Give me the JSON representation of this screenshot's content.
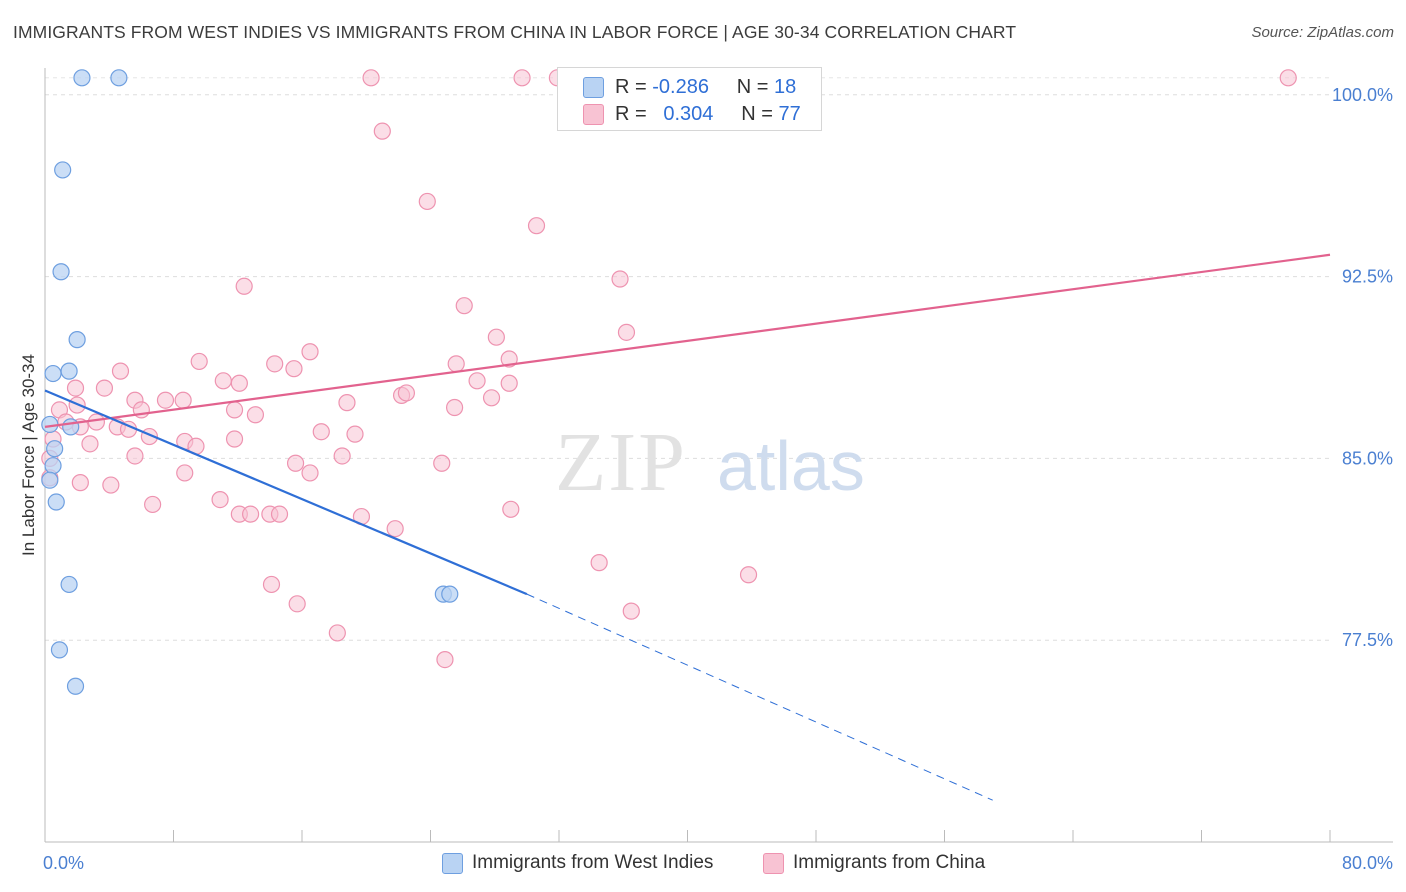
{
  "header": {
    "title": "IMMIGRANTS FROM WEST INDIES VS IMMIGRANTS FROM CHINA IN LABOR FORCE | AGE 30-34 CORRELATION CHART",
    "source": "Source: ZipAtlas.com"
  },
  "watermark": {
    "zip": "ZIP",
    "atlas": "atlas"
  },
  "legend": {
    "rows": [
      {
        "r_label": "R =",
        "r_value": "-0.286",
        "n_label": "N =",
        "n_value": "18"
      },
      {
        "r_label": "R =",
        "r_value": "0.304",
        "n_label": "N =",
        "n_value": "77"
      }
    ]
  },
  "colors": {
    "west_indies_fill": "#b9d3f3",
    "west_indies_stroke": "#6e9fe0",
    "west_indies_line": "#2f6fd6",
    "china_fill": "#f8c3d3",
    "china_stroke": "#ee93b0",
    "china_line": "#e2628e",
    "tick_text": "#4a7fd1",
    "grid": "#dddddd"
  },
  "chart_data": {
    "type": "scatter",
    "title": "IMMIGRANTS FROM WEST INDIES VS IMMIGRANTS FROM CHINA IN LABOR FORCE | AGE 30-34 CORRELATION CHART",
    "xlabel": "",
    "ylabel": "In Labor Force | Age 30-34",
    "xlim": [
      0,
      80
    ],
    "ylim": [
      70.0,
      101.6
    ],
    "x_tick_labels": [
      "0.0%",
      "80.0%"
    ],
    "y_ticks": [
      77.5,
      85.0,
      92.5,
      100.0
    ],
    "y_tick_labels": [
      "77.5%",
      "85.0%",
      "92.5%",
      "100.0%"
    ],
    "grid": true,
    "series": [
      {
        "name": "Immigrants from West Indies",
        "R": -0.286,
        "N": 18,
        "points": [
          [
            2.3,
            100.7
          ],
          [
            4.6,
            100.7
          ],
          [
            1.1,
            96.9
          ],
          [
            1.0,
            92.7
          ],
          [
            2.0,
            89.9
          ],
          [
            0.5,
            88.5
          ],
          [
            1.5,
            88.6
          ],
          [
            0.3,
            86.4
          ],
          [
            1.6,
            86.3
          ],
          [
            0.6,
            85.4
          ],
          [
            0.5,
            84.7
          ],
          [
            0.3,
            84.1
          ],
          [
            0.7,
            83.2
          ],
          [
            1.5,
            79.8
          ],
          [
            24.8,
            79.4
          ],
          [
            25.2,
            79.4
          ],
          [
            0.9,
            77.1
          ],
          [
            1.9,
            75.6
          ]
        ],
        "trend": {
          "x_start": 0.0,
          "y_start": 87.8,
          "x_end": 30.0,
          "y_end": 79.4,
          "dashed_x_end": 59.0,
          "dashed_y_end": 70.9
        }
      },
      {
        "name": "Immigrants from China",
        "R": 0.304,
        "N": 77,
        "points": [
          [
            20.3,
            100.7
          ],
          [
            29.7,
            100.7
          ],
          [
            31.9,
            100.7
          ],
          [
            77.4,
            100.7
          ],
          [
            21.0,
            98.5
          ],
          [
            23.8,
            95.6
          ],
          [
            30.6,
            94.6
          ],
          [
            12.4,
            92.1
          ],
          [
            35.8,
            92.4
          ],
          [
            26.1,
            91.3
          ],
          [
            36.2,
            90.2
          ],
          [
            28.1,
            90.0
          ],
          [
            16.5,
            89.4
          ],
          [
            9.6,
            89.0
          ],
          [
            28.9,
            89.1
          ],
          [
            25.6,
            88.9
          ],
          [
            15.5,
            88.7
          ],
          [
            14.3,
            88.9
          ],
          [
            4.7,
            88.6
          ],
          [
            11.1,
            88.2
          ],
          [
            12.1,
            88.1
          ],
          [
            26.9,
            88.2
          ],
          [
            28.9,
            88.1
          ],
          [
            1.9,
            87.9
          ],
          [
            3.7,
            87.9
          ],
          [
            22.2,
            87.6
          ],
          [
            22.5,
            87.7
          ],
          [
            5.6,
            87.4
          ],
          [
            7.5,
            87.4
          ],
          [
            8.6,
            87.4
          ],
          [
            0.9,
            87.0
          ],
          [
            2.0,
            87.2
          ],
          [
            6.0,
            87.0
          ],
          [
            11.8,
            87.0
          ],
          [
            13.1,
            86.8
          ],
          [
            18.8,
            87.3
          ],
          [
            25.5,
            87.1
          ],
          [
            27.8,
            87.5
          ],
          [
            1.3,
            86.5
          ],
          [
            2.2,
            86.3
          ],
          [
            3.2,
            86.5
          ],
          [
            4.5,
            86.3
          ],
          [
            5.2,
            86.2
          ],
          [
            6.5,
            85.9
          ],
          [
            8.7,
            85.7
          ],
          [
            17.2,
            86.1
          ],
          [
            19.3,
            86.0
          ],
          [
            9.4,
            85.5
          ],
          [
            11.8,
            85.8
          ],
          [
            5.6,
            85.1
          ],
          [
            15.6,
            84.8
          ],
          [
            24.7,
            84.8
          ],
          [
            18.5,
            85.1
          ],
          [
            8.7,
            84.4
          ],
          [
            16.5,
            84.4
          ],
          [
            2.2,
            84.0
          ],
          [
            4.1,
            83.9
          ],
          [
            6.7,
            83.1
          ],
          [
            10.9,
            83.3
          ],
          [
            12.1,
            82.7
          ],
          [
            12.8,
            82.7
          ],
          [
            14.0,
            82.7
          ],
          [
            14.6,
            82.7
          ],
          [
            19.7,
            82.6
          ],
          [
            29.0,
            82.9
          ],
          [
            21.8,
            82.1
          ],
          [
            34.5,
            80.7
          ],
          [
            43.8,
            80.2
          ],
          [
            14.1,
            79.8
          ],
          [
            15.7,
            79.0
          ],
          [
            36.5,
            78.7
          ],
          [
            18.2,
            77.8
          ],
          [
            24.9,
            76.7
          ],
          [
            0.3,
            84.2
          ],
          [
            0.5,
            85.8
          ],
          [
            0.3,
            85.0
          ],
          [
            2.8,
            85.6
          ]
        ],
        "trend": {
          "x_start": 0.0,
          "y_start": 86.3,
          "x_end": 80.0,
          "y_end": 93.4
        }
      }
    ]
  }
}
